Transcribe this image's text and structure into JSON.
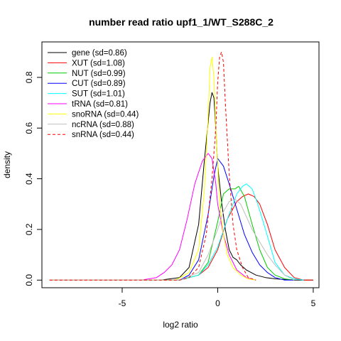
{
  "chart_data": {
    "type": "line",
    "title": "number read ratio upf1_1/WT_S288C_2",
    "xlabel": "log2 ratio",
    "ylabel": "density",
    "xlim": [
      -9.2,
      5.3
    ],
    "ylim": [
      -0.03,
      0.94
    ],
    "x_ticks": [
      -5,
      0,
      5
    ],
    "x_tick_labels": [
      "-5",
      "0",
      "5"
    ],
    "y_ticks": [
      0.0,
      0.2,
      0.4,
      0.6,
      0.8
    ],
    "y_tick_labels": [
      "0.0",
      "0.2",
      "0.4",
      "0.6",
      "0.8"
    ],
    "grid": false,
    "legend_position": "top-left",
    "series": [
      {
        "name": "gene (sd=0.86)",
        "color": "#000000",
        "dash": "solid",
        "x": [
          -8.8,
          -3.0,
          -2.0,
          -1.5,
          -1.0,
          -0.7,
          -0.4,
          -0.3,
          -0.2,
          -0.1,
          0.0,
          0.2,
          0.4,
          0.6,
          0.8,
          1.0,
          1.2,
          1.5,
          2.0,
          2.5,
          3.0,
          4.0,
          5.0
        ],
        "y": [
          0.0,
          0.0,
          0.01,
          0.05,
          0.22,
          0.47,
          0.7,
          0.74,
          0.72,
          0.6,
          0.45,
          0.31,
          0.2,
          0.12,
          0.09,
          0.08,
          0.06,
          0.04,
          0.02,
          0.01,
          0.005,
          0.0,
          0.0
        ]
      },
      {
        "name": "XUT (sd=1.08)",
        "color": "#ff0000",
        "dash": "solid",
        "x": [
          -8.8,
          -2.0,
          -1.0,
          -0.5,
          0.0,
          0.5,
          1.0,
          1.3,
          1.6,
          1.9,
          2.2,
          2.6,
          3.0,
          3.5,
          4.0,
          4.5,
          5.0
        ],
        "y": [
          0.0,
          0.0,
          0.02,
          0.05,
          0.12,
          0.24,
          0.31,
          0.33,
          0.34,
          0.33,
          0.3,
          0.22,
          0.12,
          0.05,
          0.01,
          0.0,
          0.0
        ]
      },
      {
        "name": "NUT (sd=0.99)",
        "color": "#00cc00",
        "dash": "solid",
        "x": [
          -8.8,
          -2.0,
          -1.0,
          -0.5,
          0.0,
          0.3,
          0.6,
          0.9,
          1.1,
          1.4,
          1.8,
          2.2,
          2.6,
          3.0,
          3.5,
          4.0
        ],
        "y": [
          0.0,
          0.0,
          0.02,
          0.07,
          0.23,
          0.34,
          0.36,
          0.36,
          0.37,
          0.33,
          0.22,
          0.12,
          0.05,
          0.02,
          0.005,
          0.0
        ]
      },
      {
        "name": "CUT (sd=0.89)",
        "color": "#0000ff",
        "dash": "solid",
        "x": [
          -8.8,
          -2.0,
          -1.5,
          -1.0,
          -0.5,
          -0.2,
          0.0,
          0.3,
          0.6,
          1.0,
          1.4,
          1.8,
          2.2,
          2.6,
          3.0,
          3.5,
          4.0
        ],
        "y": [
          0.0,
          0.0,
          0.02,
          0.08,
          0.26,
          0.41,
          0.48,
          0.45,
          0.38,
          0.28,
          0.18,
          0.11,
          0.06,
          0.03,
          0.01,
          0.0,
          0.0
        ]
      },
      {
        "name": "SUT (sd=1.01)",
        "color": "#00ffff",
        "dash": "solid",
        "x": [
          -8.8,
          -2.0,
          -1.0,
          -0.5,
          0.0,
          0.5,
          1.0,
          1.3,
          1.5,
          1.8,
          2.1,
          2.5,
          3.0,
          3.5,
          4.0,
          4.5
        ],
        "y": [
          0.0,
          0.0,
          0.02,
          0.06,
          0.13,
          0.24,
          0.34,
          0.37,
          0.38,
          0.36,
          0.3,
          0.2,
          0.07,
          0.02,
          0.005,
          0.0
        ]
      },
      {
        "name": "tRNA (sd=0.81)",
        "color": "#ff00ff",
        "dash": "solid",
        "x": [
          -8.8,
          -4.0,
          -3.2,
          -2.8,
          -2.4,
          -2.0,
          -1.6,
          -1.2,
          -0.8,
          -0.5,
          -0.3,
          -0.1,
          0.0,
          0.3,
          0.6,
          1.0,
          1.5,
          2.0
        ],
        "y": [
          0.0,
          0.0,
          0.01,
          0.03,
          0.06,
          0.12,
          0.24,
          0.38,
          0.47,
          0.5,
          0.48,
          0.38,
          0.3,
          0.18,
          0.1,
          0.04,
          0.01,
          0.0
        ]
      },
      {
        "name": "snoRNA (sd=0.44)",
        "color": "#ffff00",
        "dash": "solid",
        "x": [
          -8.8,
          -2.2,
          -1.5,
          -1.0,
          -0.7,
          -0.5,
          -0.4,
          -0.3,
          -0.2,
          -0.1,
          0.0,
          0.1,
          0.3,
          0.5,
          0.8,
          1.2,
          1.6,
          2.0
        ],
        "y": [
          0.0,
          0.0,
          0.03,
          0.12,
          0.35,
          0.65,
          0.84,
          0.88,
          0.8,
          0.6,
          0.45,
          0.3,
          0.18,
          0.1,
          0.05,
          0.02,
          0.005,
          0.0
        ]
      },
      {
        "name": "ncRNA (sd=0.88)",
        "color": "#bebebe",
        "dash": "solid",
        "x": [
          -8.8,
          -2.0,
          -1.0,
          -0.5,
          0.0,
          0.3,
          0.6,
          0.9,
          1.2,
          1.5,
          1.8,
          2.2,
          2.6,
          3.0,
          3.5,
          4.0
        ],
        "y": [
          0.0,
          0.0,
          0.03,
          0.1,
          0.2,
          0.27,
          0.31,
          0.32,
          0.3,
          0.25,
          0.2,
          0.15,
          0.1,
          0.06,
          0.02,
          0.0
        ]
      },
      {
        "name": "snRNA (sd=0.44)",
        "color": "#ff0000",
        "dash": "dashed",
        "x": [
          -8.8,
          -2.0,
          -1.5,
          -1.0,
          -0.6,
          -0.3,
          -0.1,
          0.0,
          0.1,
          0.2,
          0.3,
          0.4,
          0.6,
          0.8,
          1.0,
          1.3,
          1.6,
          2.0
        ],
        "y": [
          0.0,
          0.0,
          0.01,
          0.05,
          0.18,
          0.4,
          0.6,
          0.78,
          0.88,
          0.9,
          0.86,
          0.7,
          0.42,
          0.22,
          0.12,
          0.05,
          0.01,
          0.0
        ]
      }
    ]
  }
}
